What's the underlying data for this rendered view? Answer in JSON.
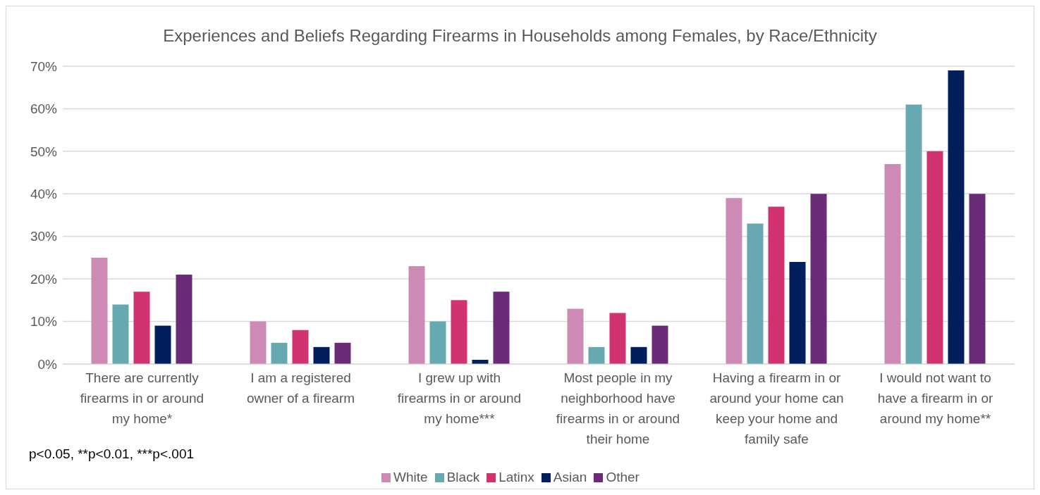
{
  "chart_data": {
    "type": "bar",
    "title": "Experiences and Beliefs Regarding Firearms in Households among Females, by Race/Ethnicity",
    "categories": [
      "There are currently firearms in or around my home*",
      "I am a registered owner of a firearm",
      "I grew up with firearms in or around my home***",
      "Most people in my neighborhood have firearms in or around their home",
      "Having a firearm in or around your home can keep your home and family safe",
      "I would not want to have a firearm in or around my home**"
    ],
    "series": [
      {
        "name": "White",
        "color": "#cc8ab4",
        "values": [
          25,
          10,
          23,
          13,
          39,
          47
        ]
      },
      {
        "name": "Black",
        "color": "#67a9b1",
        "values": [
          14,
          5,
          10,
          4,
          33,
          61
        ]
      },
      {
        "name": "Latinx",
        "color": "#d0336f",
        "values": [
          17,
          8,
          15,
          12,
          37,
          50
        ]
      },
      {
        "name": "Asian",
        "color": "#001f5c",
        "values": [
          9,
          4,
          1,
          4,
          24,
          69
        ]
      },
      {
        "name": "Other",
        "color": "#6a2c76",
        "values": [
          21,
          5,
          17,
          9,
          40,
          40
        ]
      }
    ],
    "ylim": [
      0,
      70
    ],
    "yticks": [
      {
        "value": 0,
        "label": "0%"
      },
      {
        "value": 10,
        "label": "10%"
      },
      {
        "value": 20,
        "label": "20%"
      },
      {
        "value": 30,
        "label": "30%"
      },
      {
        "value": 40,
        "label": "40%"
      },
      {
        "value": 50,
        "label": "50%"
      },
      {
        "value": 60,
        "label": "60%"
      },
      {
        "value": 70,
        "label": "70%"
      }
    ],
    "grid": "y",
    "legend": "bottom",
    "annotations": [
      "p<0.05, **p<0.01, ***p<.001"
    ]
  }
}
